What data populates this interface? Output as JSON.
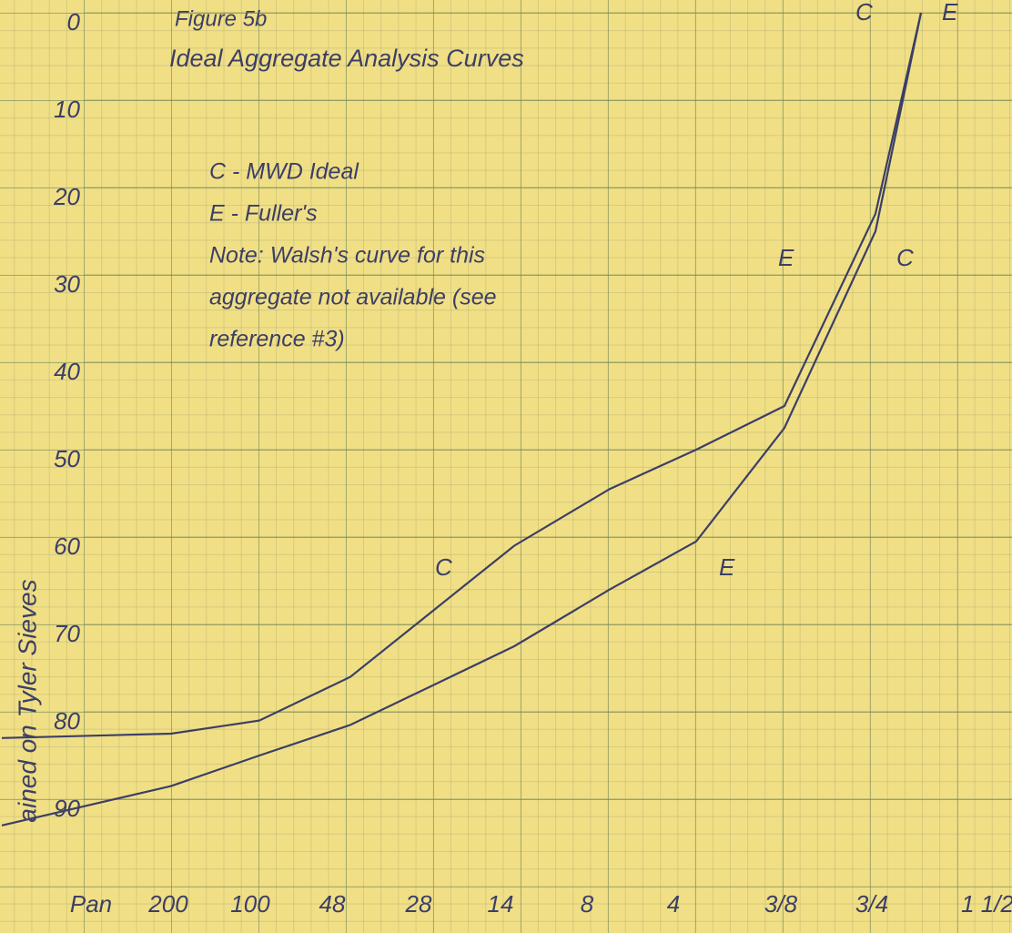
{
  "chart_data": {
    "type": "line",
    "title": "Figure 5b",
    "subtitle": "Ideal Aggregate Analysis Curves",
    "y_label": "ained on Tyler Sieves",
    "categories": [
      "Pan",
      "200",
      "100",
      "48",
      "28",
      "14",
      "8",
      "4",
      "3/8",
      "3/4",
      "1 1/2"
    ],
    "series": [
      {
        "name": "C - MWD Ideal",
        "color": "#3b3f66",
        "values": [
          83,
          82.5,
          81,
          76,
          68.5,
          61,
          54.5,
          50,
          45,
          23,
          0
        ]
      },
      {
        "name": "E - Fuller's",
        "color": "#3b3f66",
        "values": [
          93,
          88.5,
          85,
          81.5,
          77,
          72.5,
          66,
          60.5,
          47.5,
          25,
          0
        ]
      }
    ],
    "ylim": [
      0,
      100
    ],
    "yticks": [
      0,
      10,
      20,
      30,
      40,
      50,
      60,
      70,
      80,
      90
    ],
    "y_inverted": true,
    "grid": true,
    "notes": [
      "Note: Walsh's curve for this",
      "aggregate not available (see",
      "reference #3)"
    ],
    "curve_labels": [
      "C",
      "E",
      "E",
      "C",
      "C",
      "E"
    ]
  }
}
